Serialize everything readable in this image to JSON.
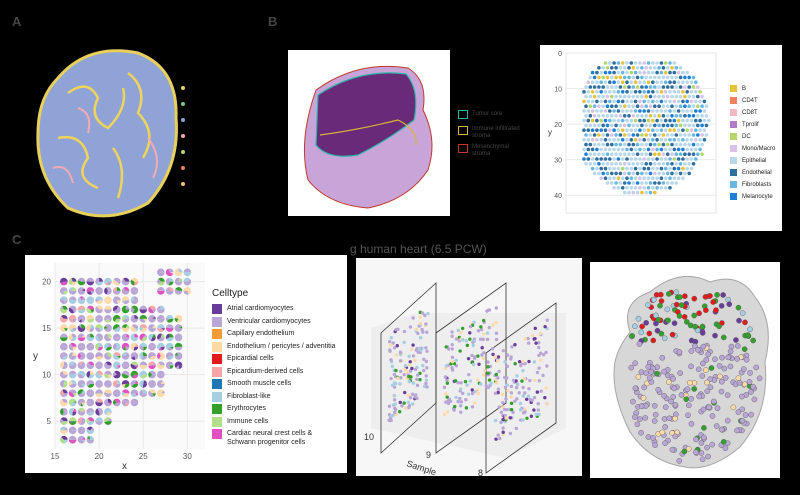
{
  "panel_labels": {
    "a": "A",
    "b": "B",
    "c": "C"
  },
  "panel_b": {
    "annotation_legend": [
      {
        "label": "Tumor core",
        "color": "#2bb5a8"
      },
      {
        "label": "Immune infiltrated stroma",
        "color": "#d8b43a"
      },
      {
        "label": "Mesenchymal stroma",
        "color": "#c0392b"
      }
    ],
    "chart_data": {
      "type": "scatter",
      "ylabel": "y",
      "y_ticks": [
        "0",
        "10",
        "20",
        "30",
        "40"
      ],
      "ylim": [
        0,
        45
      ],
      "legend": [
        {
          "label": "B",
          "color": "#e8c23a"
        },
        {
          "label": "CD4T",
          "color": "#f08060"
        },
        {
          "label": "CD8T",
          "color": "#f4b6c2"
        },
        {
          "label": "Tprolif",
          "color": "#b07cc6"
        },
        {
          "label": "DC",
          "color": "#b5d66b"
        },
        {
          "label": "Mono/Macro",
          "color": "#d9c2e6"
        },
        {
          "label": "Epithelial",
          "color": "#b8d8ea"
        },
        {
          "label": "Endothelial",
          "color": "#2f6f9f"
        },
        {
          "label": "Fibroblasts",
          "color": "#68b7e0"
        },
        {
          "label": "Melanocyte",
          "color": "#1d7fd8"
        }
      ]
    }
  },
  "panel_c": {
    "chart_data": {
      "type": "scatter",
      "xlabel": "x",
      "ylabel": "y",
      "x_ticks": [
        "15",
        "20",
        "25",
        "30"
      ],
      "y_ticks": [
        "5",
        "10",
        "15",
        "20"
      ],
      "xlim": [
        15,
        32
      ],
      "ylim": [
        2,
        22
      ],
      "legend_title": "Celltype",
      "legend": [
        {
          "label": "Atrial cardiomyocytes",
          "color": "#6a3d9a"
        },
        {
          "label": "Ventricular cardiomyocytes",
          "color": "#b9a6d6"
        },
        {
          "label": "Capillary endothelium",
          "color": "#f59b3a"
        },
        {
          "label": "Endothelium / pericytes / adventitia",
          "color": "#fdd9a8"
        },
        {
          "label": "Epicardial cells",
          "color": "#e31a1c"
        },
        {
          "label": "Epicardium-derived cells",
          "color": "#f7a6a6"
        },
        {
          "label": "Smooth muscle cells",
          "color": "#1f78b4"
        },
        {
          "label": "Fibroblast-like",
          "color": "#a6cee3"
        },
        {
          "label": "Erythrocytes",
          "color": "#33a02c"
        },
        {
          "label": "Immune cells",
          "color": "#b2df8a"
        },
        {
          "label": "Cardiac neural crest cells &\nSchwann progenitor cells",
          "color": "#e052c2"
        }
      ]
    },
    "stack_title": "g human heart (6.5 PCW)",
    "stack_axis_label": "Sample",
    "stack_ticks": [
      "10",
      "9",
      "8"
    ]
  }
}
